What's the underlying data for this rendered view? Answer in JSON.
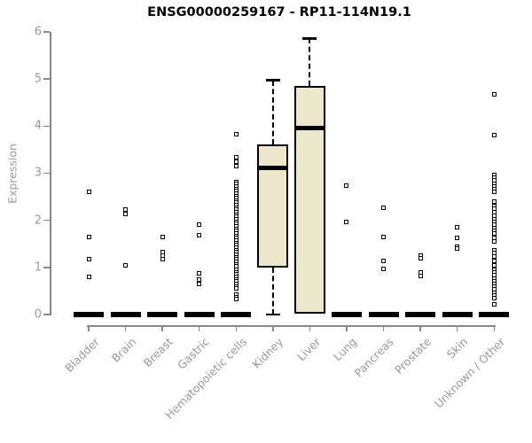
{
  "chart_data": {
    "type": "boxplot",
    "title": "ENSG00000259167 - RP11-114N19.1",
    "ylabel": "Expression",
    "xlabel": "",
    "ylim": [
      0,
      6
    ],
    "yticks": [
      0,
      1,
      2,
      3,
      4,
      5,
      6
    ],
    "grid": false,
    "legend": null,
    "colors": {
      "box_fill": "#EDE7CE",
      "box_border": "#000000",
      "median": "#000000",
      "axis": "#888888",
      "tick_label": "#999999",
      "title": "#000000"
    },
    "categories": [
      "Bladder",
      "Brain",
      "Breast",
      "Gastric",
      "Hematopoietic cells",
      "Kidney",
      "Liver",
      "Lung",
      "Pancreas",
      "Prostate",
      "Skin",
      "Unknown / Other"
    ],
    "boxes": [
      {
        "category": "Bladder",
        "median": 0,
        "q1": 0,
        "q3": 0,
        "whisker_low": 0,
        "whisker_high": 0,
        "outliers": [
          2.61,
          1.65,
          1.17,
          0.79
        ]
      },
      {
        "category": "Brain",
        "median": 0,
        "q1": 0,
        "q3": 0,
        "whisker_low": 0,
        "whisker_high": 0,
        "outliers": [
          2.22,
          2.13,
          1.04
        ]
      },
      {
        "category": "Breast",
        "median": 0,
        "q1": 0,
        "q3": 0,
        "whisker_low": 0,
        "whisker_high": 0,
        "outliers": [
          1.65,
          1.32,
          1.25,
          1.17
        ]
      },
      {
        "category": "Gastric",
        "median": 0,
        "q1": 0,
        "q3": 0,
        "whisker_low": 0,
        "whisker_high": 0,
        "outliers": [
          1.9,
          1.68,
          0.88,
          0.75,
          0.64
        ]
      },
      {
        "category": "Hematopoietic cells",
        "median": 0,
        "q1": 0,
        "q3": 0,
        "whisker_low": 0,
        "whisker_high": 0,
        "outliers": [
          3.82,
          3.33,
          3.25,
          3.15,
          2.82,
          2.77,
          2.72,
          2.67,
          2.62,
          2.57,
          2.52,
          2.47,
          2.42,
          2.37,
          2.32,
          2.27,
          2.22,
          2.17,
          2.12,
          2.07,
          2.02,
          1.97,
          1.92,
          1.87,
          1.82,
          1.77,
          1.72,
          1.67,
          1.62,
          1.57,
          1.52,
          1.47,
          1.42,
          1.37,
          1.32,
          1.27,
          1.22,
          1.17,
          1.12,
          1.07,
          1.02,
          0.95,
          0.9,
          0.85,
          0.8,
          0.75,
          0.7,
          0.65,
          0.6,
          0.55,
          0.42,
          0.36,
          0.32
        ]
      },
      {
        "category": "Kidney",
        "median": 3.12,
        "q1": 1.0,
        "q3": 3.61,
        "whisker_low": 0,
        "whisker_high": 4.97,
        "outliers": []
      },
      {
        "category": "Liver",
        "median": 3.96,
        "q1": 0.02,
        "q3": 4.85,
        "whisker_low": 0.02,
        "whisker_high": 5.86,
        "outliers": []
      },
      {
        "category": "Lung",
        "median": 0,
        "q1": 0,
        "q3": 0,
        "whisker_low": 0,
        "whisker_high": 0,
        "outliers": [
          2.73,
          1.96
        ]
      },
      {
        "category": "Pancreas",
        "median": 0,
        "q1": 0,
        "q3": 0,
        "whisker_low": 0,
        "whisker_high": 0,
        "outliers": [
          2.26,
          1.65,
          1.13,
          0.97
        ]
      },
      {
        "category": "Prostate",
        "median": 0,
        "q1": 0,
        "q3": 0,
        "whisker_low": 0,
        "whisker_high": 0,
        "outliers": [
          1.25,
          1.2,
          0.9,
          0.81
        ]
      },
      {
        "category": "Skin",
        "median": 0,
        "q1": 0,
        "q3": 0,
        "whisker_low": 0,
        "whisker_high": 0,
        "outliers": [
          1.86,
          1.63,
          1.44,
          1.4
        ]
      },
      {
        "category": "Unknown / Other",
        "median": 0,
        "q1": 0,
        "q3": 0,
        "whisker_low": 0,
        "whisker_high": 0,
        "outliers": [
          4.68,
          3.81,
          2.96,
          2.9,
          2.84,
          2.78,
          2.72,
          2.66,
          2.6,
          2.39,
          2.3,
          2.24,
          2.17,
          2.1,
          2.03,
          1.96,
          1.9,
          1.84,
          1.78,
          1.72,
          1.63,
          1.55,
          1.37,
          1.3,
          1.23,
          1.13,
          1.05,
          0.95,
          0.89,
          0.83,
          0.77,
          0.71,
          0.65,
          0.59,
          0.53,
          0.47,
          0.41,
          0.35,
          0.22
        ]
      }
    ]
  }
}
